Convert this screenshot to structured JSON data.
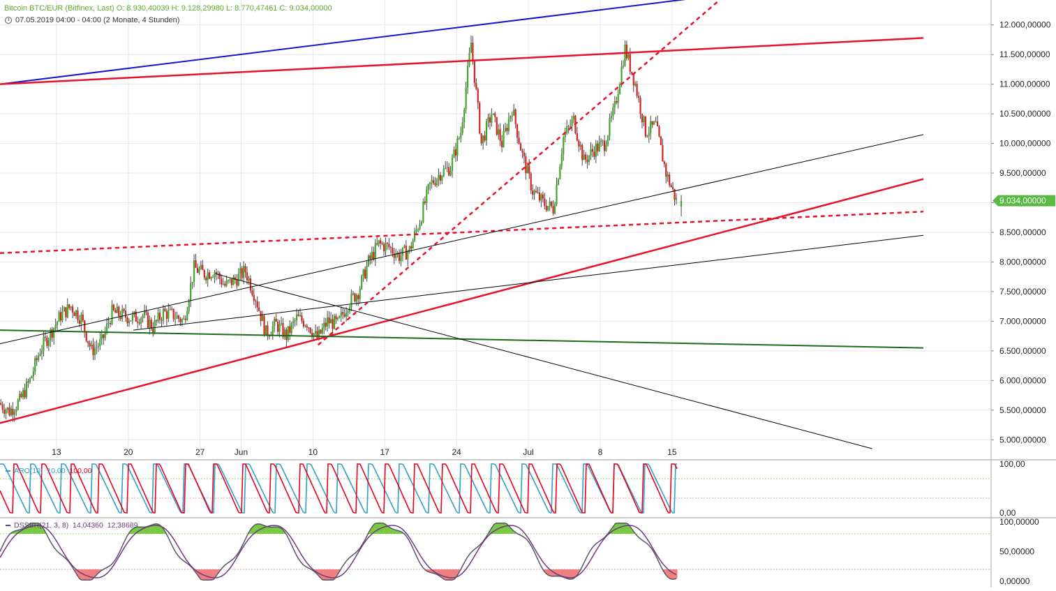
{
  "header": {
    "title": "Bitcoin BTC/EUR (Bitfinex, Last)  O: 8.930,40039  H: 9.128,29980  L: 8.770,47461  C: 9.034,00000",
    "date_line": "07.05.2019 04:00 - 04:00   (2 Monate, 4 Stunden)"
  },
  "chart_data": [
    {
      "type": "candlestick",
      "instrument": "Bitcoin BTC/EUR (Bitfinex, Last)",
      "interval": "4 Stunden",
      "x_tick_labels": [
        "13",
        "20",
        "27",
        "Jun",
        "10",
        "17",
        "24",
        "Jul",
        "8",
        "15"
      ],
      "y_tick_labels": [
        "12.000,00000",
        "11.500,00000",
        "11.000,00000",
        "10.500,00000",
        "10.000,00000",
        "9.500,00000",
        "9.000,00000",
        "8.500,00000",
        "8.000,00000",
        "7.500,00000",
        "7.000,00000",
        "6.500,00000",
        "6.000,00000",
        "5.500,00000",
        "5.000,00000"
      ],
      "ylim": [
        4850,
        12350
      ],
      "last_price_label": "9.034,00000",
      "last": {
        "open": 8930.40039,
        "high": 9128.2998,
        "low": 8770.47461,
        "close": 9034.0
      },
      "close_path": [
        [
          0,
          5620
        ],
        [
          1,
          5480
        ],
        [
          2,
          5650
        ],
        [
          3,
          6000
        ],
        [
          4,
          6520
        ],
        [
          5,
          6800
        ],
        [
          6,
          7100
        ],
        [
          7,
          7250
        ],
        [
          8,
          7050
        ],
        [
          9,
          6500
        ],
        [
          10,
          6650
        ],
        [
          11,
          7150
        ],
        [
          12,
          7100
        ],
        [
          13,
          7050
        ],
        [
          14,
          7100
        ],
        [
          15,
          6900
        ],
        [
          16,
          7150
        ],
        [
          17,
          7100
        ],
        [
          18,
          7000
        ],
        [
          19,
          7900
        ],
        [
          20,
          7800
        ],
        [
          21,
          7850
        ],
        [
          22,
          7600
        ],
        [
          23,
          7700
        ],
        [
          24,
          7850
        ],
        [
          25,
          7400
        ],
        [
          26,
          6800
        ],
        [
          27,
          6950
        ],
        [
          28,
          6750
        ],
        [
          29,
          7050
        ],
        [
          30,
          6980
        ],
        [
          31,
          6700
        ],
        [
          32,
          7000
        ],
        [
          33,
          6950
        ],
        [
          34,
          7300
        ],
        [
          35,
          7500
        ],
        [
          36,
          8000
        ],
        [
          37,
          8300
        ],
        [
          38,
          8250
        ],
        [
          39,
          8100
        ],
        [
          40,
          8200
        ],
        [
          41,
          8700
        ],
        [
          42,
          9300
        ],
        [
          43,
          9500
        ],
        [
          44,
          9600
        ],
        [
          45,
          10200
        ],
        [
          46,
          11700
        ],
        [
          47,
          10000
        ],
        [
          48,
          10500
        ],
        [
          49,
          10000
        ],
        [
          50,
          10600
        ],
        [
          51,
          9800
        ],
        [
          52,
          9200
        ],
        [
          53,
          9000
        ],
        [
          54,
          8900
        ],
        [
          55,
          10100
        ],
        [
          56,
          10400
        ],
        [
          57,
          9700
        ],
        [
          58,
          9900
        ],
        [
          59,
          10000
        ],
        [
          60,
          10600
        ],
        [
          61,
          11600
        ],
        [
          62,
          11000
        ],
        [
          63,
          10200
        ],
        [
          64,
          10300
        ],
        [
          65,
          9500
        ],
        [
          66,
          9034
        ]
      ],
      "trendlines": [
        {
          "color": "#1515cc",
          "style": "solid",
          "from": [
            0,
            11000
          ],
          "to": [
            70,
            12500
          ]
        },
        {
          "color": "#e8112a",
          "style": "solid",
          "from": [
            0,
            11000
          ],
          "to": [
            90,
            11780
          ]
        },
        {
          "color": "#e8112a",
          "style": "solid",
          "from": [
            0,
            5280
          ],
          "to": [
            90,
            9400
          ]
        },
        {
          "color": "#e8112a",
          "style": "dashed",
          "from": [
            0,
            8150
          ],
          "to": [
            90,
            8850
          ]
        },
        {
          "color": "#e8112a",
          "style": "dashed",
          "from": [
            31,
            6600
          ],
          "to": [
            70,
            12400
          ]
        },
        {
          "color": "#1a6e1a",
          "style": "solid",
          "from": [
            0,
            6850
          ],
          "to": [
            90,
            6550
          ]
        },
        {
          "color": "#000000",
          "style": "thin",
          "from": [
            0,
            6620
          ],
          "to": [
            90,
            10150
          ]
        },
        {
          "color": "#000000",
          "style": "thin",
          "from": [
            13,
            6850
          ],
          "to": [
            90,
            8450
          ]
        },
        {
          "color": "#000000",
          "style": "thin",
          "from": [
            21,
            7800
          ],
          "to": [
            85,
            4850
          ]
        }
      ]
    },
    {
      "type": "line",
      "indicator": "ARO(10)",
      "series": [
        {
          "name": "ARO(10)",
          "value": "10,00",
          "color": "#2e9fc5"
        },
        {
          "name": "ARO(10)",
          "value": "100,00",
          "color": "#e8001c"
        }
      ],
      "y_tick_labels": [
        "100,00",
        "0,00"
      ],
      "ylim": [
        0,
        100
      ],
      "guide_lines": [
        70,
        30
      ]
    },
    {
      "type": "line",
      "indicator": "DSSBR(21, 3, 8)",
      "series": [
        {
          "name": "DSSBR(21, 3, 8)",
          "value": "14,04360",
          "color": "#6b3a7e"
        },
        {
          "name": "DSSBR(21, 3, 8)",
          "value": "12,38689",
          "color": "#6b3a7e"
        }
      ],
      "y_tick_labels": [
        "100,00000",
        "50,00000",
        "0,00000"
      ],
      "ylim": [
        0,
        100
      ],
      "overbought": 80,
      "oversold": 20,
      "fill_colors": {
        "overbought": "#7ac943",
        "oversold": "#f08080"
      }
    }
  ],
  "colors": {
    "up": "#3da825",
    "down": "#d8201e",
    "price_badge": "#5ab845",
    "axis_text": "#222222",
    "grid": "#e6e6e6"
  }
}
